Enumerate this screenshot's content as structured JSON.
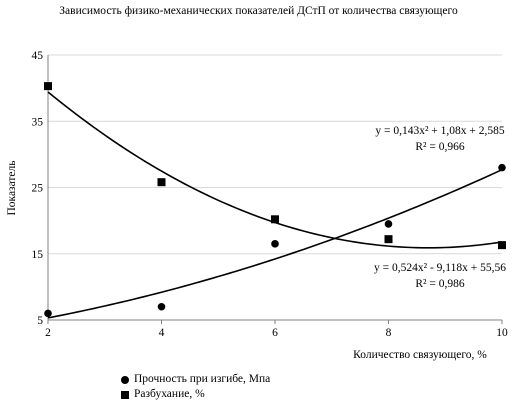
{
  "chart_data": {
    "type": "scatter",
    "title": "Зависимость физико-механических  показателей ДСтП от количества связующего",
    "xlabel": "Количество связующего, %",
    "ylabel": "Показатель",
    "xlim": [
      2,
      10
    ],
    "ylim": [
      5,
      45
    ],
    "xticks": [
      2,
      4,
      6,
      8,
      10
    ],
    "yticks": [
      5,
      15,
      25,
      35,
      45
    ],
    "legend_position": "bottom-left",
    "series": [
      {
        "name": "Прочность при изгибе, Мпа",
        "marker": "circle",
        "color": "#000000",
        "x": [
          2,
          4,
          6,
          8,
          10
        ],
        "y": [
          6,
          7,
          16.5,
          19.5,
          28
        ],
        "trendline": {
          "type": "poly2",
          "coef": [
            0.143,
            1.08,
            2.585
          ]
        },
        "equation": "y = 0,143x² + 1,08x + 2,585",
        "r2": "R² = 0,966"
      },
      {
        "name": "Разбухание, %",
        "marker": "square",
        "color": "#000000",
        "x": [
          2,
          4,
          6,
          8,
          10
        ],
        "y": [
          40.3,
          25.8,
          20.2,
          17.2,
          16.3
        ],
        "trendline": {
          "type": "poly2",
          "coef": [
            0.524,
            -9.118,
            55.56
          ]
        },
        "equation": "y = 0,524x² - 9,118x + 55,56",
        "r2": "R² = 0,986"
      }
    ]
  }
}
